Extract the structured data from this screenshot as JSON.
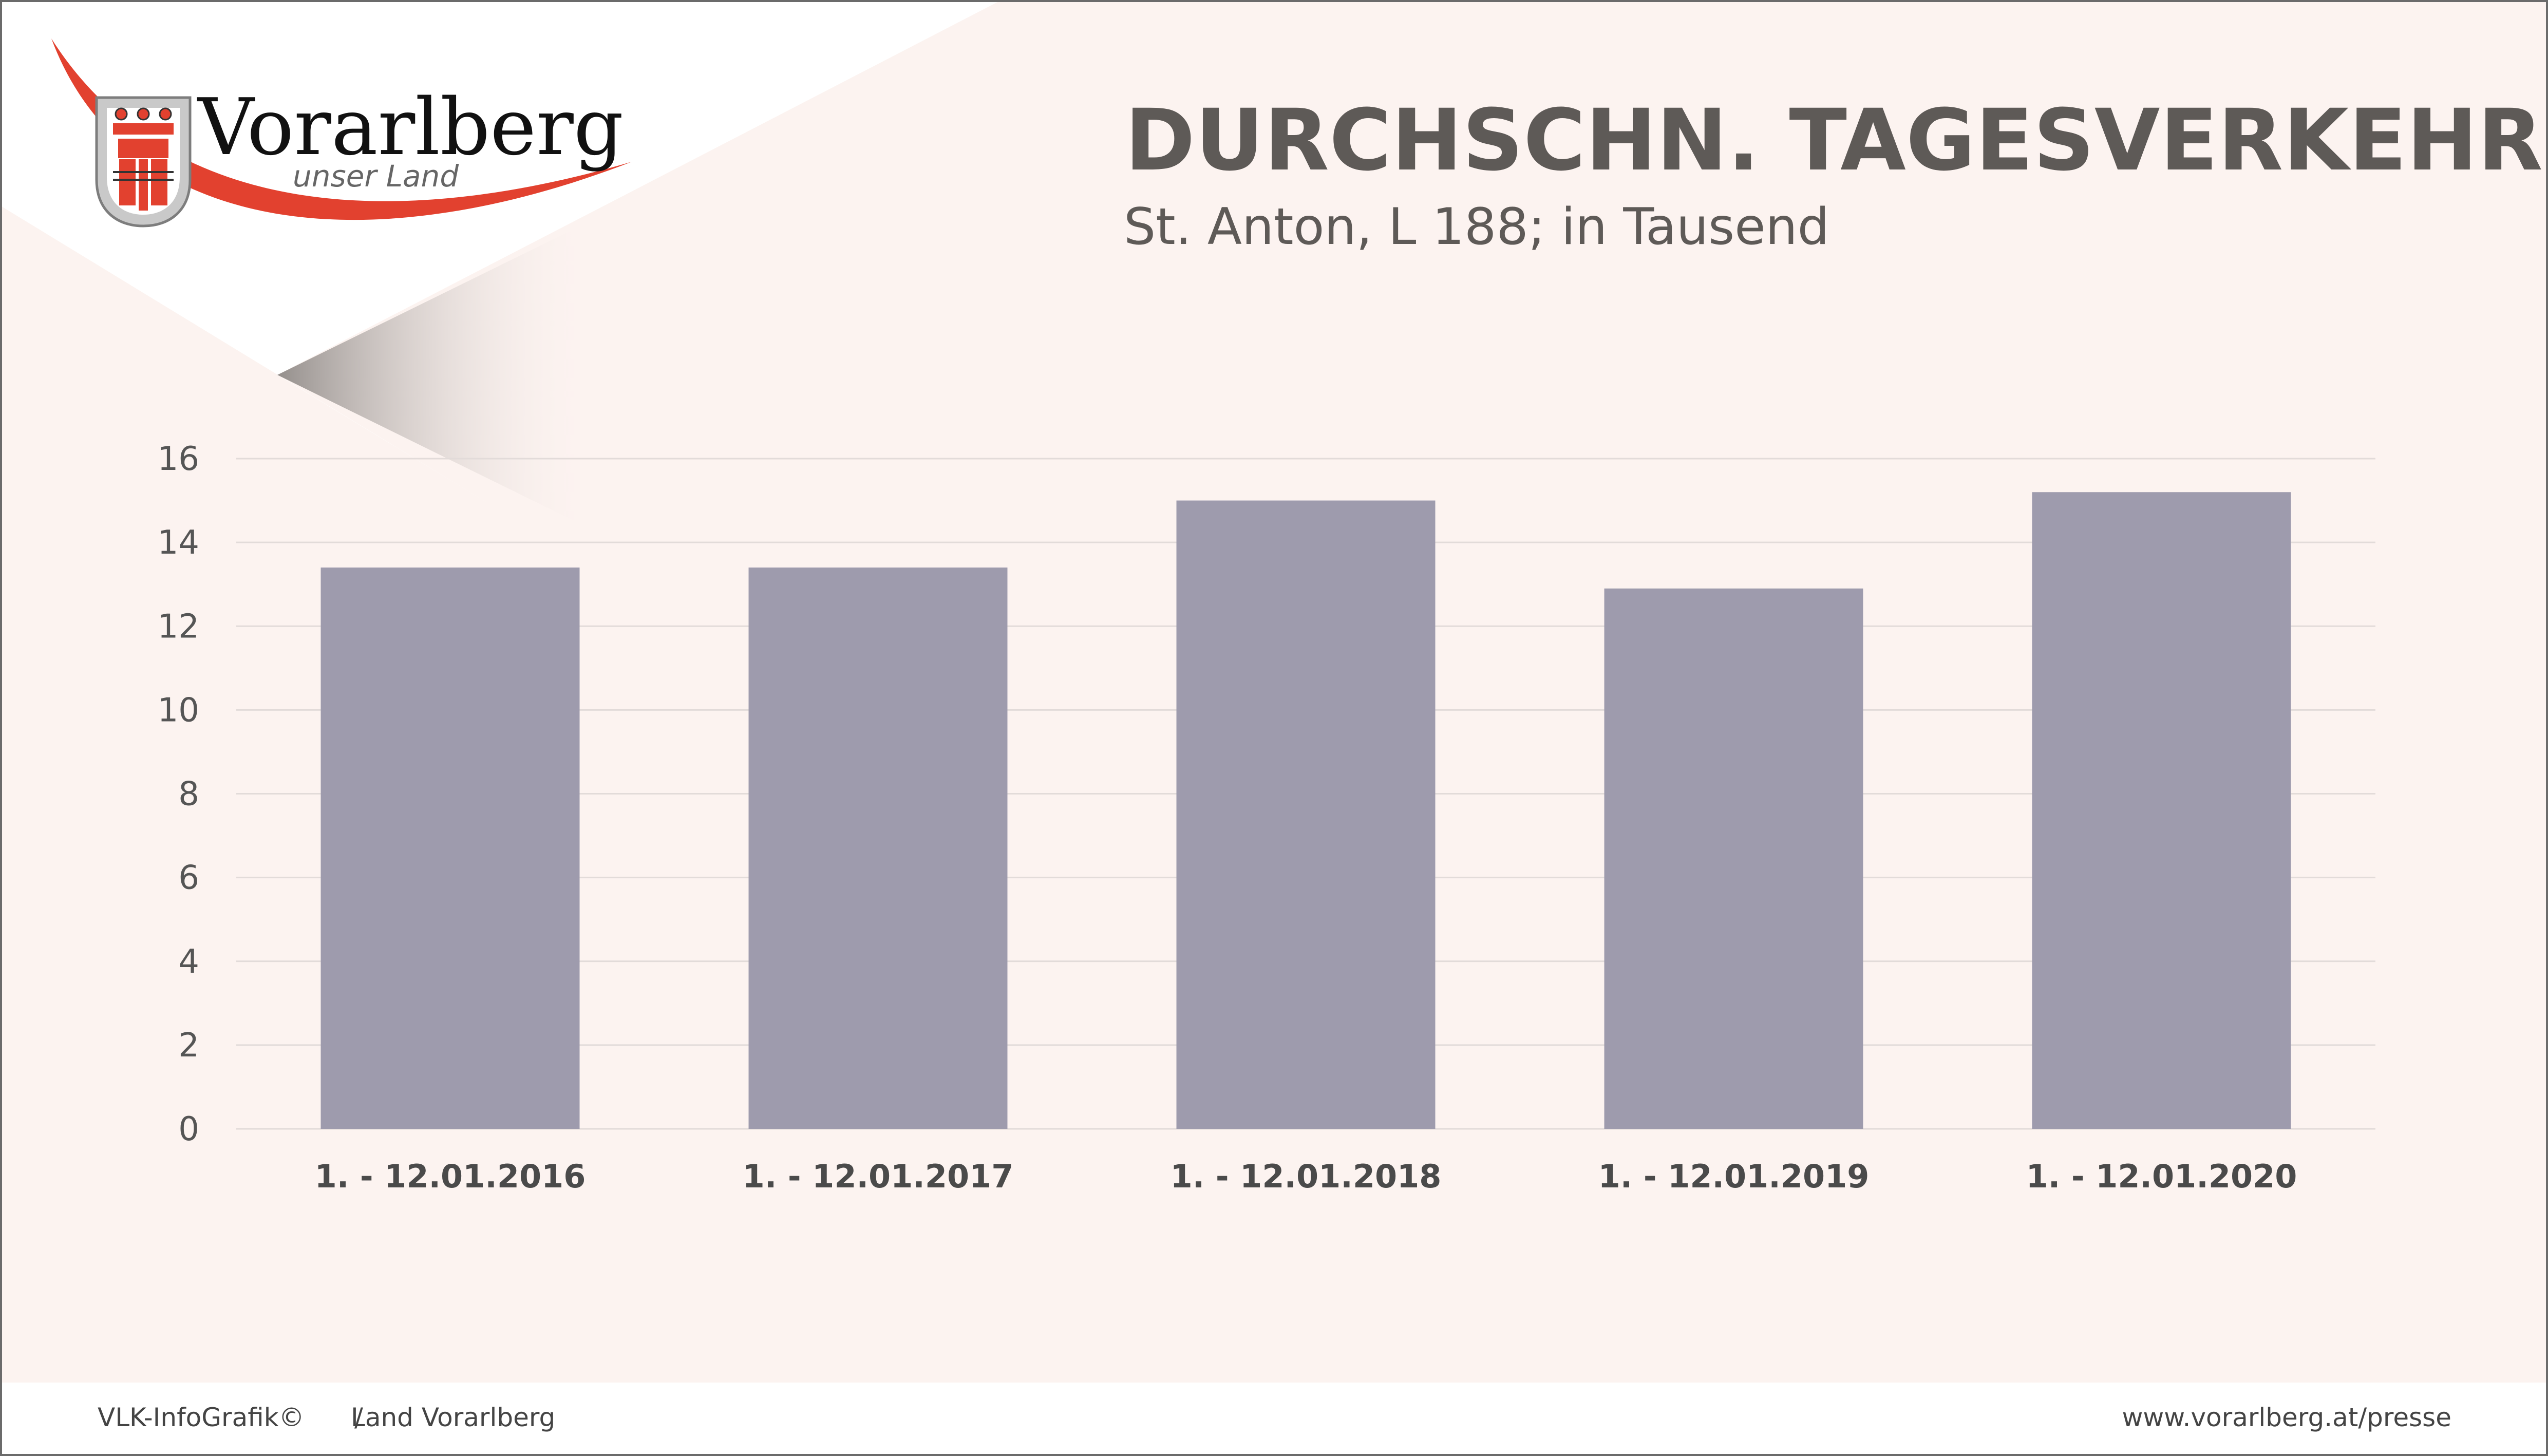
{
  "logo": {
    "name": "Vorarlberg",
    "tagline": "unser Land",
    "icon": "coat-of-arms-icon"
  },
  "header": {
    "title": "DURCHSCHN. TAGESVERKEHR",
    "subtitle": "St. Anton, L 188; in Tausend"
  },
  "footer": {
    "source": "VLK-InfoGrafik©",
    "separator": "/",
    "publisher": "Land Vorarlberg",
    "url": "www.vorarlberg.at/presse"
  },
  "colors": {
    "background": "#fcf3f0",
    "bar": "#9e9bad",
    "title": "#5e5a57",
    "accent": "#e2412f",
    "grid": "#e2dbd9"
  },
  "chart_data": {
    "type": "bar",
    "title": "DURCHSCHN. TAGESVERKEHR",
    "subtitle": "St. Anton, L 188; in Tausend",
    "categories": [
      "1. - 12.01.2016",
      "1. - 12.01.2017",
      "1. - 12.01.2018",
      "1. - 12.01.2019",
      "1. - 12.01.2020"
    ],
    "values": [
      13.4,
      13.4,
      15.0,
      12.9,
      15.2
    ],
    "ylim": [
      0,
      16
    ],
    "yticks": [
      "0",
      "2",
      "4",
      "6",
      "8",
      "10",
      "12",
      "14",
      "16"
    ],
    "grid": true,
    "legend": "none"
  }
}
